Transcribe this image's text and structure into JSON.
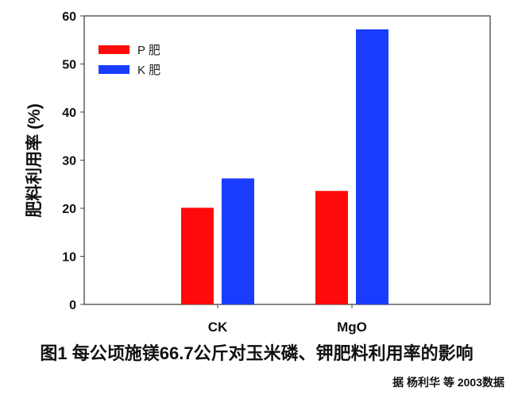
{
  "chart_data": {
    "type": "bar",
    "categories": [
      "CK",
      "MgO"
    ],
    "series": [
      {
        "name": "P 肥",
        "values": [
          20.1,
          23.6
        ],
        "color": "#ff0a0a"
      },
      {
        "name": "K 肥",
        "values": [
          26.2,
          57.2
        ],
        "color": "#1a3cff"
      }
    ],
    "ylabel": "肥料利用率 (%)",
    "xlabel": "",
    "ylim": [
      0,
      60
    ],
    "yticks": [
      "0",
      "10",
      "20",
      "30",
      "40",
      "50",
      "60"
    ],
    "grid": false,
    "legend": "top-left"
  },
  "caption": "图1 每公顷施镁66.7公斤对玉米磷、钾肥料利用率的影响",
  "source": "据 杨利华 等 2003数据"
}
